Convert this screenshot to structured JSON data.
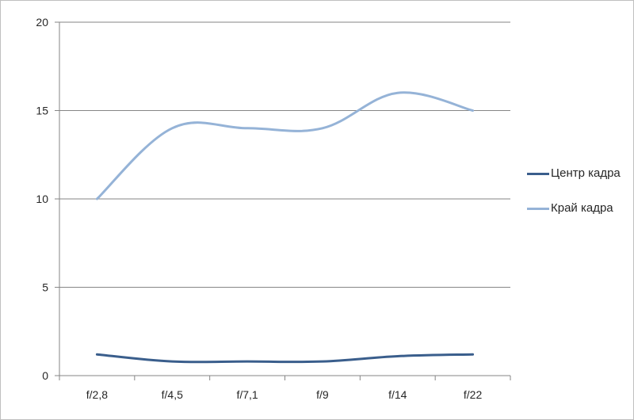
{
  "chart_data": {
    "type": "line",
    "title": "",
    "xlabel": "",
    "ylabel": "",
    "categories": [
      "f/2,8",
      "f/4,5",
      "f/7,1",
      "f/9",
      "f/14",
      "f/22"
    ],
    "ylim": [
      0,
      20
    ],
    "yticks": [
      "0",
      "5",
      "10",
      "15",
      "20"
    ],
    "grid": true,
    "legend_position": "right",
    "series": [
      {
        "name": "Центр кадра",
        "color": "#3a5e8c",
        "values": [
          1.2,
          0.8,
          0.8,
          0.8,
          1.1,
          1.2
        ]
      },
      {
        "name": "Край кадра",
        "color": "#95b3d7",
        "values": [
          10,
          14,
          14,
          14,
          16,
          15
        ]
      }
    ]
  }
}
